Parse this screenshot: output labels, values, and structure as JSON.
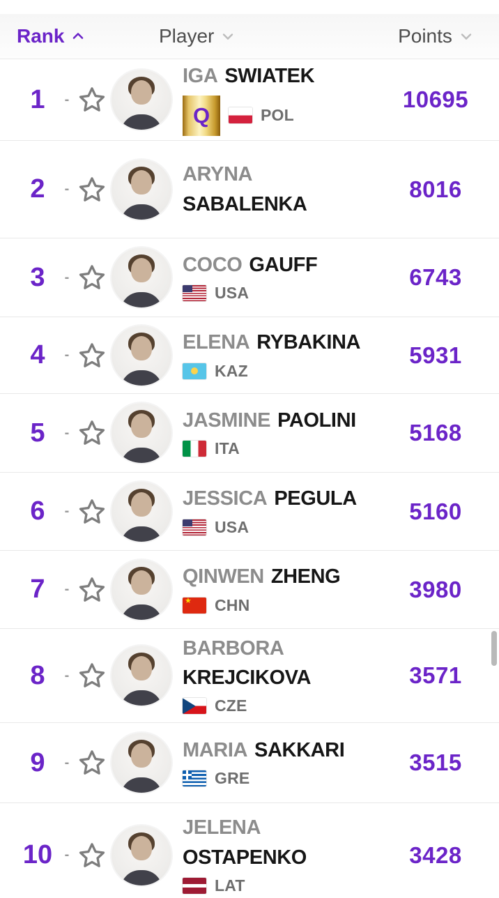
{
  "colors": {
    "accent": "#6b24c8",
    "name_muted": "#8c8c8c",
    "name_dark": "#161616",
    "country": "#6e6e6e",
    "header_text": "#4d4d4d",
    "divider": "#e8e8e8",
    "qualified_badge_gold": "#e5c468"
  },
  "table": {
    "header": {
      "rank_label": "Rank",
      "rank_sort_icon": "chevron-up-icon",
      "player_label": "Player",
      "player_sort_icon": "chevron-down-icon",
      "points_label": "Points",
      "points_sort_icon": "chevron-down-icon"
    },
    "rows": [
      {
        "rank": "1",
        "movement": "-",
        "first": "IGA",
        "last": "SWIATEK",
        "badge": "Q",
        "country": "POL",
        "flag": "pol",
        "points": "10695",
        "name_layout": "inline"
      },
      {
        "rank": "2",
        "movement": "-",
        "first": "ARYNA",
        "last": "SABALENKA",
        "badge": "",
        "country": "",
        "flag": "",
        "points": "8016",
        "name_layout": "stacked"
      },
      {
        "rank": "3",
        "movement": "-",
        "first": "COCO",
        "last": "GAUFF",
        "badge": "",
        "country": "USA",
        "flag": "usa",
        "points": "6743",
        "name_layout": "inline"
      },
      {
        "rank": "4",
        "movement": "-",
        "first": "ELENA",
        "last": "RYBAKINA",
        "badge": "",
        "country": "KAZ",
        "flag": "kaz",
        "points": "5931",
        "name_layout": "inline"
      },
      {
        "rank": "5",
        "movement": "-",
        "first": "JASMINE",
        "last": "PAOLINI",
        "badge": "",
        "country": "ITA",
        "flag": "ita",
        "points": "5168",
        "name_layout": "inline"
      },
      {
        "rank": "6",
        "movement": "-",
        "first": "JESSICA",
        "last": "PEGULA",
        "badge": "",
        "country": "USA",
        "flag": "usa",
        "points": "5160",
        "name_layout": "inline"
      },
      {
        "rank": "7",
        "movement": "-",
        "first": "QINWEN",
        "last": "ZHENG",
        "badge": "",
        "country": "CHN",
        "flag": "chn",
        "points": "3980",
        "name_layout": "inline"
      },
      {
        "rank": "8",
        "movement": "-",
        "first": "BARBORA",
        "last": "KREJCIKOVA",
        "badge": "",
        "country": "CZE",
        "flag": "cze",
        "points": "3571",
        "name_layout": "stacked"
      },
      {
        "rank": "9",
        "movement": "-",
        "first": "MARIA",
        "last": "SAKKARI",
        "badge": "",
        "country": "GRE",
        "flag": "gre",
        "points": "3515",
        "name_layout": "inline"
      },
      {
        "rank": "10",
        "movement": "-",
        "first": "JELENA",
        "last": "OSTAPENKO",
        "badge": "",
        "country": "LAT",
        "flag": "lat",
        "points": "3428",
        "name_layout": "stacked"
      }
    ]
  }
}
